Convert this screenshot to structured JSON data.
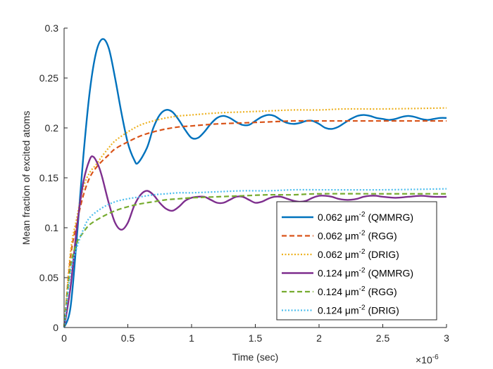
{
  "chart_data": {
    "type": "line",
    "title": "",
    "xlabel": "Time (sec)",
    "ylabel": "Mean fraction of excited atoms",
    "x_exponent_base": "×10",
    "x_exponent_power": "-6",
    "xlim": [
      0,
      3
    ],
    "ylim": [
      0,
      0.3
    ],
    "xticks": [
      0,
      0.5,
      1,
      1.5,
      2,
      2.5,
      3
    ],
    "xtick_labels": [
      "0",
      "0.5",
      "1",
      "1.5",
      "2",
      "2.5",
      "3"
    ],
    "yticks": [
      0,
      0.05,
      0.1,
      0.15,
      0.2,
      0.25,
      0.3
    ],
    "ytick_labels": [
      "0",
      "0.05",
      "0.1",
      "0.15",
      "0.2",
      "0.25",
      "0.3"
    ],
    "grid": false,
    "legend_location": "bottom-right",
    "unit_base": "μm",
    "unit_exponent": "-2",
    "series": [
      {
        "density": "0.062",
        "method": "(QMMRG)",
        "color": "#0072BD",
        "style": "solid",
        "x": [
          0,
          0.05,
          0.1,
          0.15,
          0.2,
          0.25,
          0.3,
          0.35,
          0.4,
          0.45,
          0.5,
          0.55,
          0.58,
          0.65,
          0.7,
          0.75,
          0.8,
          0.85,
          0.9,
          0.95,
          1.0,
          1.05,
          1.1,
          1.15,
          1.2,
          1.25,
          1.3,
          1.35,
          1.4,
          1.45,
          1.5,
          1.55,
          1.6,
          1.65,
          1.7,
          1.75,
          1.8,
          1.85,
          1.9,
          1.95,
          2.0,
          2.05,
          2.1,
          2.15,
          2.2,
          2.25,
          2.3,
          2.35,
          2.4,
          2.45,
          2.5,
          2.55,
          2.6,
          2.65,
          2.7,
          2.75,
          2.8,
          2.85,
          2.9,
          2.95,
          3.0
        ],
        "y": [
          0,
          0.02,
          0.09,
          0.17,
          0.235,
          0.275,
          0.289,
          0.28,
          0.25,
          0.215,
          0.185,
          0.168,
          0.165,
          0.18,
          0.2,
          0.213,
          0.218,
          0.216,
          0.208,
          0.198,
          0.19,
          0.19,
          0.196,
          0.204,
          0.21,
          0.212,
          0.21,
          0.206,
          0.203,
          0.203,
          0.207,
          0.211,
          0.213,
          0.212,
          0.208,
          0.205,
          0.204,
          0.205,
          0.207,
          0.207,
          0.204,
          0.2,
          0.199,
          0.201,
          0.205,
          0.209,
          0.212,
          0.213,
          0.212,
          0.21,
          0.209,
          0.208,
          0.209,
          0.211,
          0.212,
          0.211,
          0.209,
          0.208,
          0.209,
          0.21,
          0.21
        ]
      },
      {
        "density": "0.062",
        "method": "(RGG)",
        "color": "#D95319",
        "style": "dashed",
        "x": [
          0,
          0.05,
          0.1,
          0.15,
          0.2,
          0.25,
          0.3,
          0.35,
          0.4,
          0.5,
          0.6,
          0.7,
          0.8,
          0.9,
          1.0,
          1.2,
          1.4,
          1.6,
          1.8,
          2.0,
          2.2,
          2.5,
          3.0
        ],
        "y": [
          0,
          0.07,
          0.105,
          0.132,
          0.15,
          0.16,
          0.167,
          0.173,
          0.179,
          0.186,
          0.192,
          0.196,
          0.199,
          0.201,
          0.202,
          0.204,
          0.205,
          0.206,
          0.207,
          0.207,
          0.207,
          0.207,
          0.207
        ]
      },
      {
        "density": "0.062",
        "method": "(DRIG)",
        "color": "#EDB120",
        "style": "dotted",
        "x": [
          0,
          0.05,
          0.1,
          0.15,
          0.2,
          0.25,
          0.3,
          0.35,
          0.4,
          0.5,
          0.6,
          0.7,
          0.8,
          0.9,
          1.0,
          1.2,
          1.4,
          1.6,
          1.8,
          2.0,
          2.2,
          2.5,
          3.0
        ],
        "y": [
          0,
          0.075,
          0.11,
          0.14,
          0.155,
          0.163,
          0.172,
          0.18,
          0.187,
          0.196,
          0.203,
          0.207,
          0.21,
          0.212,
          0.213,
          0.215,
          0.216,
          0.217,
          0.218,
          0.218,
          0.219,
          0.219,
          0.22
        ]
      },
      {
        "density": "0.124",
        "method": "(QMMRG)",
        "color": "#7E2F8E",
        "style": "solid",
        "x": [
          0,
          0.05,
          0.1,
          0.15,
          0.2,
          0.23,
          0.27,
          0.3,
          0.35,
          0.4,
          0.45,
          0.5,
          0.55,
          0.6,
          0.65,
          0.7,
          0.75,
          0.8,
          0.85,
          0.9,
          0.95,
          1.0,
          1.05,
          1.1,
          1.15,
          1.2,
          1.25,
          1.3,
          1.35,
          1.4,
          1.45,
          1.5,
          1.55,
          1.6,
          1.65,
          1.7,
          1.75,
          1.8,
          1.85,
          1.9,
          1.95,
          2.0,
          2.05,
          2.1,
          2.15,
          2.2,
          2.25,
          2.3,
          2.35,
          2.4,
          2.45,
          2.5,
          2.6,
          2.7,
          2.8,
          2.9,
          3.0
        ],
        "y": [
          0,
          0.04,
          0.1,
          0.145,
          0.168,
          0.171,
          0.162,
          0.15,
          0.125,
          0.105,
          0.098,
          0.105,
          0.122,
          0.133,
          0.137,
          0.133,
          0.125,
          0.119,
          0.117,
          0.121,
          0.127,
          0.13,
          0.131,
          0.131,
          0.128,
          0.125,
          0.125,
          0.128,
          0.131,
          0.131,
          0.128,
          0.125,
          0.126,
          0.129,
          0.131,
          0.131,
          0.129,
          0.127,
          0.126,
          0.127,
          0.13,
          0.132,
          0.132,
          0.131,
          0.129,
          0.128,
          0.128,
          0.129,
          0.131,
          0.132,
          0.132,
          0.131,
          0.13,
          0.131,
          0.132,
          0.131,
          0.131
        ]
      },
      {
        "density": "0.124",
        "method": "(RGG)",
        "color": "#77AC30",
        "style": "dashed",
        "x": [
          0,
          0.05,
          0.1,
          0.15,
          0.2,
          0.3,
          0.4,
          0.5,
          0.6,
          0.7,
          0.8,
          0.9,
          1.0,
          1.2,
          1.4,
          1.6,
          1.8,
          2.0,
          2.5,
          3.0
        ],
        "y": [
          0,
          0.06,
          0.085,
          0.095,
          0.103,
          0.111,
          0.117,
          0.121,
          0.124,
          0.126,
          0.128,
          0.129,
          0.13,
          0.131,
          0.132,
          0.133,
          0.133,
          0.134,
          0.134,
          0.134
        ]
      },
      {
        "density": "0.124",
        "method": "(DRIG)",
        "color": "#4DBEEE",
        "style": "dotted",
        "x": [
          0,
          0.05,
          0.1,
          0.15,
          0.2,
          0.3,
          0.4,
          0.5,
          0.6,
          0.7,
          0.8,
          0.9,
          1.0,
          1.2,
          1.4,
          1.6,
          1.8,
          2.0,
          2.5,
          3.0
        ],
        "y": [
          0,
          0.055,
          0.08,
          0.098,
          0.11,
          0.12,
          0.126,
          0.129,
          0.131,
          0.133,
          0.134,
          0.135,
          0.135,
          0.136,
          0.137,
          0.137,
          0.138,
          0.138,
          0.138,
          0.139
        ]
      }
    ]
  }
}
